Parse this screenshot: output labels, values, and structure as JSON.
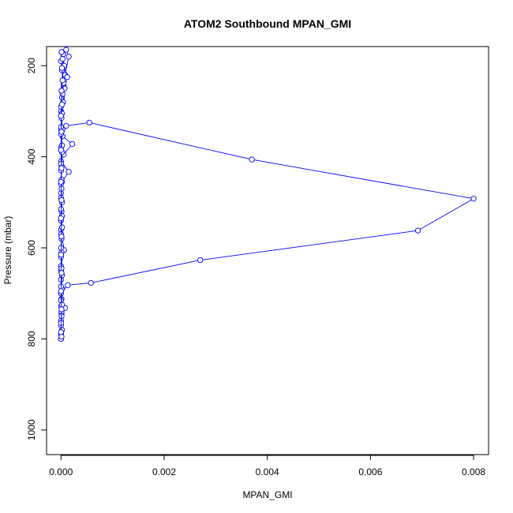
{
  "chart_data": {
    "type": "line",
    "title": "ATOM2 Southbound MPAN_GMI",
    "xlabel": "MPAN_GMI",
    "ylabel": "Pressure (mbar)",
    "xlim": [
      -0.00028,
      0.00829
    ],
    "ylim": [
      1054,
      158
    ],
    "y_reversed": true,
    "xticks": [
      0.0,
      0.002,
      0.004,
      0.006,
      0.008
    ],
    "xtick_labels": [
      "0.000",
      "0.002",
      "0.004",
      "0.006",
      "0.008"
    ],
    "yticks": [
      200,
      400,
      600,
      800,
      1000
    ],
    "ytick_labels": [
      "200",
      "400",
      "600",
      "800",
      "1000"
    ],
    "grid": false,
    "series": [
      {
        "color": "#0000ff",
        "marker": "open-circle",
        "points": [
          {
            "x": 0.0,
            "y": 800
          },
          {
            "x": 2e-05,
            "y": 780
          },
          {
            "x": 0.0,
            "y": 760
          },
          {
            "x": 1e-05,
            "y": 745
          },
          {
            "x": 8e-05,
            "y": 732
          },
          {
            "x": 0.0,
            "y": 728
          },
          {
            "x": 1e-05,
            "y": 712
          },
          {
            "x": 0.0,
            "y": 700
          },
          {
            "x": 0.00013,
            "y": 682
          },
          {
            "x": 0.00058,
            "y": 677
          },
          {
            "x": 0.0027,
            "y": 627
          },
          {
            "x": 0.00692,
            "y": 562
          },
          {
            "x": 0.008,
            "y": 492
          },
          {
            "x": 0.0037,
            "y": 406
          },
          {
            "x": 0.00055,
            "y": 325
          },
          {
            "x": 0.0001,
            "y": 332
          },
          {
            "x": 0.0,
            "y": 340
          },
          {
            "x": 3e-05,
            "y": 355
          },
          {
            "x": 0.00022,
            "y": 372
          },
          {
            "x": 5e-05,
            "y": 395
          },
          {
            "x": 0.0,
            "y": 410
          },
          {
            "x": 0.00015,
            "y": 433
          },
          {
            "x": 2e-05,
            "y": 455
          },
          {
            "x": 0.0,
            "y": 480
          },
          {
            "x": 1e-05,
            "y": 520
          },
          {
            "x": 0.0,
            "y": 560
          },
          {
            "x": 6e-05,
            "y": 605
          },
          {
            "x": 0.0,
            "y": 640
          },
          {
            "x": 0.0,
            "y": 670
          }
        ]
      },
      {
        "color": "#0000ff",
        "marker": "open-circle",
        "points": [
          {
            "x": 0.0,
            "y": 800
          },
          {
            "x": 0.0,
            "y": 770
          },
          {
            "x": 1e-05,
            "y": 740
          },
          {
            "x": 0.0,
            "y": 700
          },
          {
            "x": 2e-05,
            "y": 660
          },
          {
            "x": 0.0,
            "y": 620
          },
          {
            "x": 1e-05,
            "y": 580
          },
          {
            "x": 0.0,
            "y": 540
          },
          {
            "x": 2e-05,
            "y": 500
          },
          {
            "x": 0.0,
            "y": 460
          },
          {
            "x": 1e-05,
            "y": 420
          },
          {
            "x": 0.0,
            "y": 380
          },
          {
            "x": 3e-05,
            "y": 340
          },
          {
            "x": 0.0,
            "y": 300
          },
          {
            "x": 2e-05,
            "y": 270
          },
          {
            "x": 5e-05,
            "y": 245
          },
          {
            "x": 8e-05,
            "y": 220
          },
          {
            "x": 0.00015,
            "y": 180
          },
          {
            "x": 0.0001,
            "y": 165
          }
        ]
      },
      {
        "color": "#0000ff",
        "marker": "open-circle",
        "points": [
          {
            "x": 0.0,
            "y": 790
          },
          {
            "x": 1e-05,
            "y": 750
          },
          {
            "x": 0.0,
            "y": 715
          },
          {
            "x": 2e-05,
            "y": 690
          },
          {
            "x": 0.0,
            "y": 650
          },
          {
            "x": 1e-05,
            "y": 610
          },
          {
            "x": 0.0,
            "y": 570
          },
          {
            "x": 2e-05,
            "y": 530
          },
          {
            "x": 0.0,
            "y": 490
          },
          {
            "x": 1e-05,
            "y": 450
          },
          {
            "x": 0.0,
            "y": 415
          },
          {
            "x": 2e-05,
            "y": 375
          },
          {
            "x": 0.0,
            "y": 335
          },
          {
            "x": 2e-05,
            "y": 305
          },
          {
            "x": 4e-05,
            "y": 280
          },
          {
            "x": 7e-05,
            "y": 250
          },
          {
            "x": 0.00012,
            "y": 225
          },
          {
            "x": 6e-05,
            "y": 200
          },
          {
            "x": 4e-05,
            "y": 175
          }
        ]
      },
      {
        "color": "#0000ff",
        "marker": "open-circle",
        "points": [
          {
            "x": 1e-05,
            "y": 795
          },
          {
            "x": 0.0,
            "y": 765
          },
          {
            "x": 2e-05,
            "y": 725
          },
          {
            "x": 0.0,
            "y": 685
          },
          {
            "x": 1e-05,
            "y": 645
          },
          {
            "x": 0.0,
            "y": 600
          },
          {
            "x": 2e-05,
            "y": 555
          },
          {
            "x": 0.0,
            "y": 515
          },
          {
            "x": 1e-05,
            "y": 470
          },
          {
            "x": 0.0,
            "y": 430
          },
          {
            "x": 2e-05,
            "y": 390
          },
          {
            "x": 0.0,
            "y": 350
          },
          {
            "x": 1e-05,
            "y": 315
          },
          {
            "x": 0.0,
            "y": 290
          },
          {
            "x": 3e-05,
            "y": 262
          },
          {
            "x": 5e-05,
            "y": 238
          },
          {
            "x": 2e-05,
            "y": 210
          },
          {
            "x": 0.0,
            "y": 190
          },
          {
            "x": 1e-05,
            "y": 170
          }
        ]
      },
      {
        "color": "#0000ff",
        "marker": "open-circle",
        "points": [
          {
            "x": 0.0,
            "y": 785
          },
          {
            "x": 1e-05,
            "y": 735
          },
          {
            "x": 0.0,
            "y": 695
          },
          {
            "x": 1e-05,
            "y": 655
          },
          {
            "x": 0.0,
            "y": 615
          },
          {
            "x": 1e-05,
            "y": 575
          },
          {
            "x": 0.0,
            "y": 535
          },
          {
            "x": 1e-05,
            "y": 495
          },
          {
            "x": 0.0,
            "y": 455
          },
          {
            "x": 1e-05,
            "y": 425
          },
          {
            "x": 0.0,
            "y": 385
          },
          {
            "x": 1e-05,
            "y": 345
          },
          {
            "x": 0.0,
            "y": 310
          },
          {
            "x": 2e-05,
            "y": 285
          },
          {
            "x": 1e-05,
            "y": 255
          },
          {
            "x": 3e-05,
            "y": 232
          },
          {
            "x": 2e-05,
            "y": 205
          },
          {
            "x": 3e-05,
            "y": 185
          }
        ]
      }
    ]
  }
}
